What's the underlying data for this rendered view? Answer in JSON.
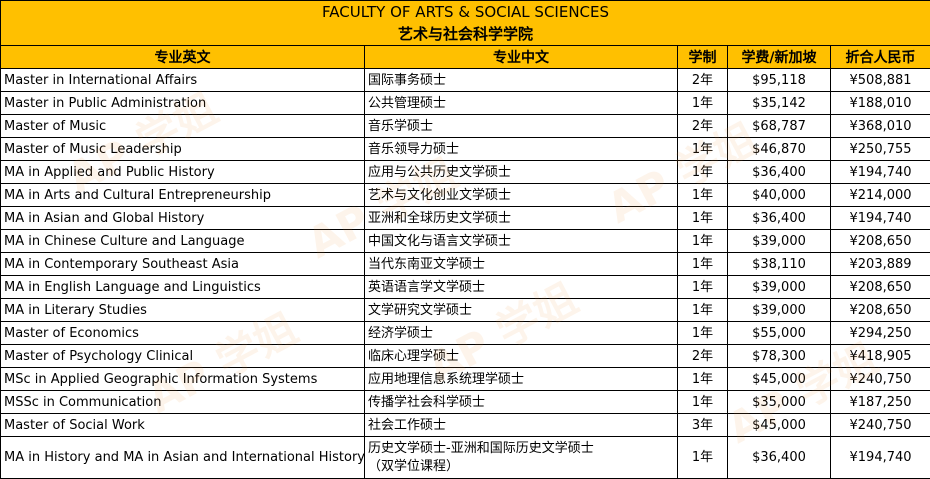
{
  "title_en": "FACULTY OF ARTS & SOCIAL SCIENCES",
  "title_zh": "艺术与社会科学学院",
  "headers": {
    "program_en": "专业英文",
    "program_zh": "专业中文",
    "duration": "学制",
    "fee_sgd": "学费/新加坡",
    "fee_rmb": "折合人民币"
  },
  "rows": [
    {
      "en": "Master in International Affairs",
      "zh": "国际事务硕士",
      "dur": "2年",
      "sgd": "$95,118",
      "rmb": "¥508,881"
    },
    {
      "en": "Master in Public Administration",
      "zh": "公共管理硕士",
      "dur": "1年",
      "sgd": "$35,142",
      "rmb": "¥188,010"
    },
    {
      "en": "Master of Music",
      "zh": "音乐学硕士",
      "dur": "2年",
      "sgd": "$68,787",
      "rmb": "¥368,010"
    },
    {
      "en": "Master of Music Leadership",
      "zh": "音乐领导力硕士",
      "dur": "1年",
      "sgd": "$46,870",
      "rmb": "¥250,755"
    },
    {
      "en": "MA in Applied and Public History",
      "zh": "应用与公共历史文学硕士",
      "dur": "1年",
      "sgd": "$36,400",
      "rmb": "¥194,740"
    },
    {
      "en": "MA in Arts and Cultural Entrepreneurship",
      "zh": "艺术与文化创业文学硕士",
      "dur": "1年",
      "sgd": "$40,000",
      "rmb": "¥214,000"
    },
    {
      "en": "MA in Asian and Global History",
      "zh": "亚洲和全球历史文学硕士",
      "dur": "1年",
      "sgd": "$36,400",
      "rmb": "¥194,740"
    },
    {
      "en": "MA in Chinese Culture and Language",
      "zh": "中国文化与语言文学硕士",
      "dur": "1年",
      "sgd": "$39,000",
      "rmb": "¥208,650"
    },
    {
      "en": "MA in Contemporary Southeast Asia",
      "zh": "当代东南亚文学硕士",
      "dur": "1年",
      "sgd": "$38,110",
      "rmb": "¥203,889"
    },
    {
      "en": "MA in English Language and Linguistics",
      "zh": "英语语言学文学硕士",
      "dur": "1年",
      "sgd": "$39,000",
      "rmb": "¥208,650"
    },
    {
      "en": "MA in Literary Studies",
      "zh": "文学研究文学硕士",
      "dur": "1年",
      "sgd": "$39,000",
      "rmb": "¥208,650"
    },
    {
      "en": "Master of Economics",
      "zh": "经济学硕士",
      "dur": "1年",
      "sgd": "$55,000",
      "rmb": "¥294,250"
    },
    {
      "en": "Master of Psychology Clinical",
      "zh": "临床心理学硕士",
      "dur": "2年",
      "sgd": "$78,300",
      "rmb": "¥418,905"
    },
    {
      "en": "MSc in Applied Geographic Information Systems",
      "zh": "应用地理信息系统理学硕士",
      "dur": "1年",
      "sgd": "$45,000",
      "rmb": "¥240,750"
    },
    {
      "en": "MSSc in Communication",
      "zh": "传播学社会科学硕士",
      "dur": "1年",
      "sgd": "$35,000",
      "rmb": "¥187,250"
    },
    {
      "en": "Master of Social Work",
      "zh": "社会工作硕士",
      "dur": "3年",
      "sgd": "$45,000",
      "rmb": "¥240,750"
    },
    {
      "en": "MA in History and MA in Asian and International History",
      "zh": "历史文学硕士-亚洲和国际历史文学硕士",
      "zh2": "（双学位课程）",
      "dur": "1年",
      "sgd": "$36,400",
      "rmb": "¥194,740"
    }
  ],
  "watermark": "AP 学姐"
}
